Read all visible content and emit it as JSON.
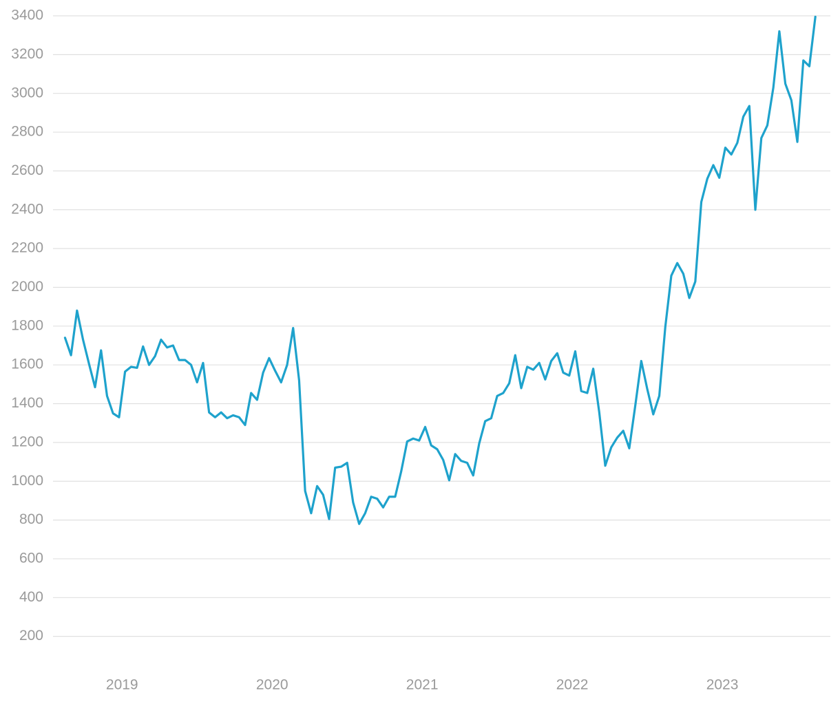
{
  "chart_data": {
    "type": "line",
    "x": [
      2018.62,
      2018.66,
      2018.7,
      2018.74,
      2018.78,
      2018.82,
      2018.86,
      2018.9,
      2018.94,
      2018.98,
      2019.02,
      2019.06,
      2019.1,
      2019.14,
      2019.18,
      2019.22,
      2019.26,
      2019.3,
      2019.34,
      2019.38,
      2019.42,
      2019.46,
      2019.5,
      2019.54,
      2019.58,
      2019.62,
      2019.66,
      2019.7,
      2019.74,
      2019.78,
      2019.82,
      2019.86,
      2019.9,
      2019.94,
      2019.98,
      2020.02,
      2020.06,
      2020.1,
      2020.14,
      2020.18,
      2020.22,
      2020.26,
      2020.3,
      2020.34,
      2020.38,
      2020.42,
      2020.46,
      2020.5,
      2020.54,
      2020.58,
      2020.62,
      2020.66,
      2020.7,
      2020.74,
      2020.78,
      2020.82,
      2020.86,
      2020.9,
      2020.94,
      2020.98,
      2021.02,
      2021.06,
      2021.1,
      2021.14,
      2021.18,
      2021.22,
      2021.26,
      2021.3,
      2021.34,
      2021.38,
      2021.42,
      2021.46,
      2021.5,
      2021.54,
      2021.58,
      2021.62,
      2021.66,
      2021.7,
      2021.74,
      2021.78,
      2021.82,
      2021.86,
      2021.9,
      2021.94,
      2021.98,
      2022.02,
      2022.06,
      2022.1,
      2022.14,
      2022.18,
      2022.22,
      2022.26,
      2022.3,
      2022.34,
      2022.38,
      2022.42,
      2022.46,
      2022.5,
      2022.54,
      2022.58,
      2022.62,
      2022.66,
      2022.7,
      2022.74,
      2022.78,
      2022.82,
      2022.86,
      2022.9,
      2022.94,
      2022.98,
      2023.02,
      2023.06,
      2023.1,
      2023.14,
      2023.18,
      2023.22,
      2023.26,
      2023.3,
      2023.34,
      2023.38,
      2023.42,
      2023.46,
      2023.5,
      2023.54,
      2023.58,
      2023.62
    ],
    "values": [
      1740,
      1650,
      1880,
      1730,
      1605,
      1485,
      1675,
      1440,
      1350,
      1330,
      1565,
      1590,
      1585,
      1695,
      1600,
      1645,
      1730,
      1690,
      1700,
      1625,
      1625,
      1600,
      1510,
      1610,
      1355,
      1330,
      1355,
      1325,
      1340,
      1330,
      1290,
      1455,
      1420,
      1560,
      1635,
      1570,
      1510,
      1600,
      1790,
      1520,
      950,
      835,
      975,
      930,
      805,
      1070,
      1075,
      1095,
      890,
      780,
      835,
      920,
      910,
      865,
      920,
      920,
      1050,
      1205,
      1220,
      1210,
      1280,
      1185,
      1165,
      1110,
      1005,
      1140,
      1105,
      1095,
      1030,
      1195,
      1310,
      1325,
      1440,
      1455,
      1505,
      1650,
      1480,
      1590,
      1575,
      1610,
      1525,
      1620,
      1660,
      1560,
      1545,
      1670,
      1465,
      1455,
      1580,
      1355,
      1080,
      1175,
      1225,
      1260,
      1170,
      1390,
      1620,
      1475,
      1345,
      1440,
      1795,
      2060,
      2125,
      2070,
      1945,
      2030,
      2440,
      2560,
      2630,
      2565,
      2720,
      2685,
      2745,
      2880,
      2935,
      2400,
      2770,
      2835,
      3030,
      3320,
      3050,
      2965,
      2750,
      3170,
      3140,
      3395
    ],
    "color": "#1ea2cc",
    "xlim": [
      2018.54,
      2023.72
    ],
    "xticks": [
      2019,
      2020,
      2021,
      2022,
      2023
    ],
    "ylim": [
      0,
      3400
    ],
    "yticks": [
      200,
      400,
      600,
      800,
      1000,
      1200,
      1400,
      1600,
      1800,
      2000,
      2200,
      2400,
      2600,
      2800,
      3000,
      3200,
      3400
    ],
    "grid": true
  }
}
